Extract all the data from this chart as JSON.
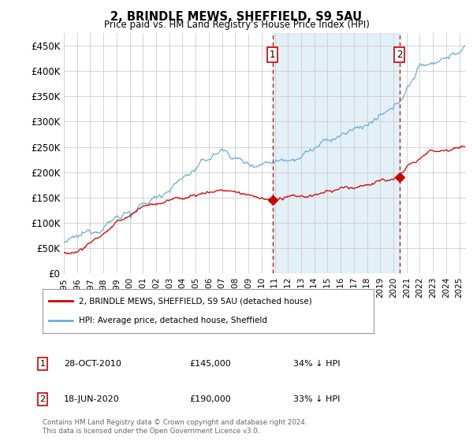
{
  "title": "2, BRINDLE MEWS, SHEFFIELD, S9 5AU",
  "subtitle": "Price paid vs. HM Land Registry's House Price Index (HPI)",
  "ylabel_ticks": [
    "£0",
    "£50K",
    "£100K",
    "£150K",
    "£200K",
    "£250K",
    "£300K",
    "£350K",
    "£400K",
    "£450K"
  ],
  "ytick_values": [
    0,
    50000,
    100000,
    150000,
    200000,
    250000,
    300000,
    350000,
    400000,
    450000
  ],
  "ylim": [
    0,
    475000
  ],
  "xlim_start": 1995.0,
  "xlim_end": 2025.5,
  "hpi_color": "#6baed6",
  "hpi_color_light": "#ddeeff",
  "price_color": "#cc0000",
  "transaction1_x": 2010.83,
  "transaction1_y": 145000,
  "transaction2_x": 2020.46,
  "transaction2_y": 190000,
  "legend_label1": "2, BRINDLE MEWS, SHEFFIELD, S9 5AU (detached house)",
  "legend_label2": "HPI: Average price, detached house, Sheffield",
  "note1_num": "1",
  "note1_date": "28-OCT-2010",
  "note1_price": "£145,000",
  "note1_hpi": "34% ↓ HPI",
  "note2_num": "2",
  "note2_date": "18-JUN-2020",
  "note2_price": "£190,000",
  "note2_hpi": "33% ↓ HPI",
  "footer": "Contains HM Land Registry data © Crown copyright and database right 2024.\nThis data is licensed under the Open Government Licence v3.0."
}
